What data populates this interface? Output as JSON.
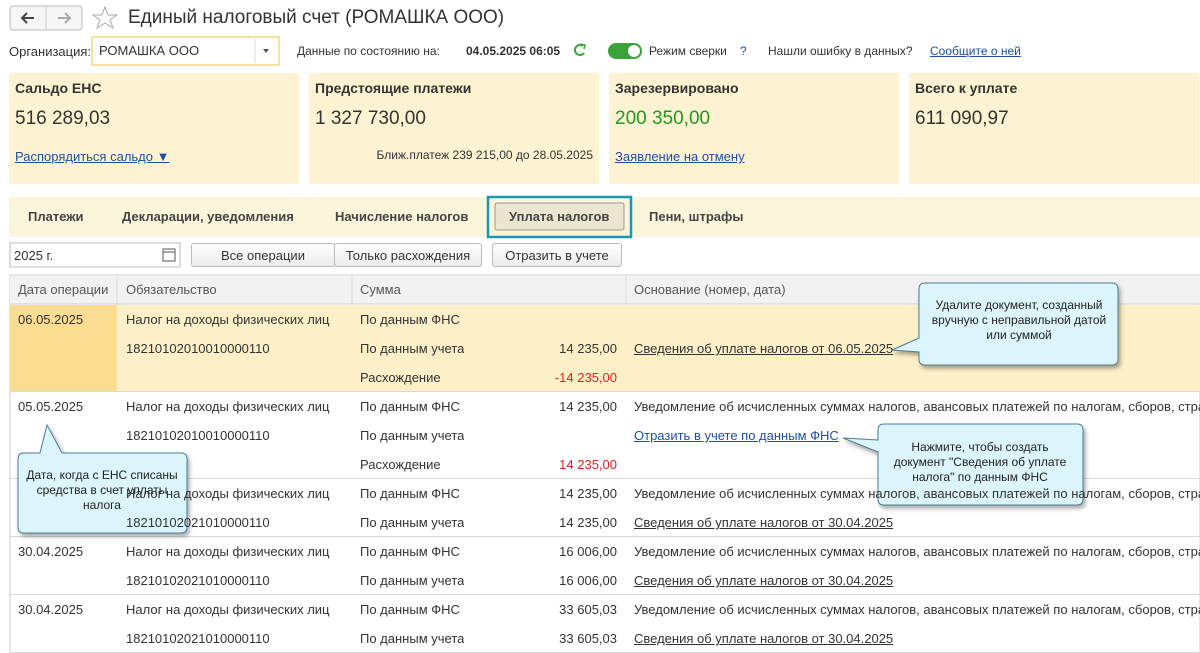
{
  "header": {
    "title": "Единый налоговый счет (РОМАШКА ООО)"
  },
  "toolbar": {
    "org_label": "Организация:",
    "org_value": "РОМАШКА ООО",
    "state_label": "Данные по состоянию на:",
    "state_value": "04.05.2025 06:05",
    "mode_label": "Режим сверки",
    "mode_help": "?",
    "error_label": "Нашли ошибку в данных?",
    "error_link": "Сообщите о ней"
  },
  "cards": [
    {
      "title": "Сальдо ЕНС",
      "amount": "516 289,03",
      "link": "Распорядиться сальдо ▼"
    },
    {
      "title": "Предстоящие платежи",
      "amount": "1 327 730,00",
      "note": "Ближ.платеж 239 215,00 до 28.05.2025"
    },
    {
      "title": "Зарезервировано",
      "info": true,
      "amount": "200 350,00",
      "amount_color": "#1f9a1f",
      "link": "Заявление на отмену"
    },
    {
      "title": "Всего к уплате",
      "info": true,
      "amount": "611 090,97"
    }
  ],
  "tabs": [
    {
      "label": "Платежи"
    },
    {
      "label": "Декларации, уведомления"
    },
    {
      "label": "Начисление налогов"
    },
    {
      "label": "Уплата налогов",
      "active": true
    },
    {
      "label": "Пени, штрафы"
    }
  ],
  "filters": {
    "year": "2025 г.",
    "buttons": [
      "Все операции",
      "Только расхождения"
    ],
    "reflect": "Отразить в учете"
  },
  "table": {
    "columns": [
      "Дата операции",
      "Обязательство",
      "Сумма",
      "Основание (номер, дата)"
    ],
    "groups": [
      {
        "highlight": true,
        "lines": [
          [
            "06.05.2025",
            "Налог на доходы физических лиц",
            "По данным ФНС",
            null,
            null
          ],
          [
            null,
            "18210102010010000110",
            "По данным учета",
            "14 235,00",
            "Сведения об уплате налогов от 06.05.2025"
          ],
          [
            null,
            null,
            "Расхождение",
            "-14 235,00",
            null
          ]
        ]
      },
      {
        "action": true,
        "lines": [
          [
            "05.05.2025",
            "Налог на доходы физических лиц",
            "По данным ФНС",
            "14 235,00",
            "Уведомление об исчисленных суммах налогов, авансовых платежей по налогам, сборов, стра"
          ],
          [
            null,
            "18210102010010000110",
            "По данным учета",
            null,
            "Отразить в учете по данным ФНС"
          ],
          [
            null,
            null,
            "Расхождение",
            "14 235,00",
            null
          ]
        ]
      },
      {
        "lines": [
          [
            null,
            "Налог на доходы физических лиц",
            "По данным ФНС",
            "14 235,00",
            "Уведомление об исчисленных суммах налогов, авансовых платежей по налогам, сборов, стра"
          ],
          [
            null,
            "18210102021010000110",
            "По данным учета",
            "14 235,00",
            "Сведения об уплате налогов от 30.04.2025"
          ]
        ]
      },
      {
        "lines": [
          [
            "30.04.2025",
            "Налог на доходы физических лиц",
            "По данным ФНС",
            "16 006,00",
            "Уведомление об исчисленных суммах налогов, авансовых платежей по налогам, сборов, стра"
          ],
          [
            null,
            "18210102021010000110",
            "По данным учета",
            "16 006,00",
            "Сведения об уплате налогов от 30.04.2025"
          ]
        ]
      },
      {
        "lines": [
          [
            "30.04.2025",
            "Налог на доходы физических лиц",
            "По данным ФНС",
            "33 605,03",
            "Уведомление об исчисленных суммах налогов, авансовых платежей по налогам, сборов, стра"
          ],
          [
            null,
            "18210102021010000110",
            "По данным учета",
            "33 605,03",
            "Сведения об уплате налогов от 30.04.2025"
          ]
        ]
      }
    ]
  },
  "callouts": [
    "Удалите документ, созданный вручную с неправильной датой или суммой",
    "Нажмите, чтобы создать документ \"Сведения об уплате налога\" по данным ФНС",
    "Дата, когда с ЕНС списаны средства в счет уплаты налога"
  ]
}
